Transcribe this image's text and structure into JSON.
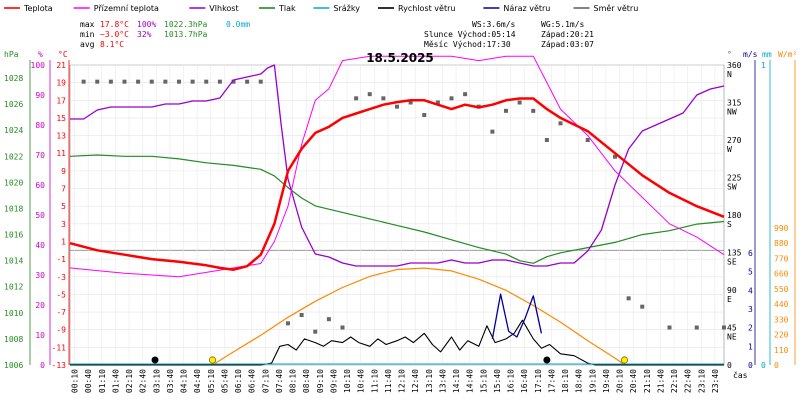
{
  "chart_data": {
    "type": "line",
    "title": "18.5.2025",
    "xlabel": "čas",
    "colors": {
      "teplota": "#ff0000",
      "pocitova": "#ff00ff",
      "vlhkost": "#9900cc",
      "tlak": "#228b22",
      "srazky": "#00aacc",
      "rychlost": "#000000",
      "naraz": "#000099",
      "smer": "#666666",
      "slunce": "#ff8800",
      "axis_c": "#ff0000",
      "axis_pct": "#cc00cc",
      "axis_hpa": "#228b22",
      "axis_mm": "#00aacc",
      "axis_wm": "#ff8800"
    },
    "legend": [
      {
        "key": "teplota",
        "label": "Teplota"
      },
      {
        "key": "pocitova",
        "label": "Přízemní teplota"
      },
      {
        "key": "vlhkost",
        "label": "Vlhkost"
      },
      {
        "key": "tlak",
        "label": "Tlak"
      },
      {
        "key": "srazky",
        "label": "Srážky"
      },
      {
        "key": "rychlost",
        "label": "Rychlost větru"
      },
      {
        "key": "naraz",
        "label": "Náraz větru"
      },
      {
        "key": "smer",
        "label": "Směr větru"
      }
    ],
    "stats": {
      "max_label": "max",
      "max_t": "17.8°C",
      "max_h": "100%",
      "max_p": "1022.3hPa",
      "max_r": "0.0mm",
      "min_label": "min",
      "min_t": "−3.0°C",
      "min_h": "32%",
      "min_p": "1013.7hPa",
      "avg_label": "avg",
      "avg_t": "8.1°C"
    },
    "info": {
      "ws": "WS:3.6m/s",
      "wg": "WG:5.1m/s",
      "slunce": "Slunce Východ:05:14",
      "slunce_z": "Západ:20:21",
      "mesic": "Měsíc  Východ:17:30",
      "mesic_z": "Západ:03:07"
    },
    "axes": {
      "hpa_unit": "hPa",
      "pct_unit": "%",
      "c_unit": "°C",
      "deg_unit": "°",
      "ms_unit": "m/s",
      "mm_unit": "mm",
      "wm_unit": "W/m²",
      "hpa_ticks": [
        "1028",
        "1026",
        "1024",
        "1022",
        "1020",
        "1018",
        "1016",
        "1014",
        "1012",
        "1010",
        "1008",
        "1006"
      ],
      "pct_ticks": [
        "100",
        "90",
        "80",
        "70",
        "60",
        "50",
        "40",
        "30",
        "20",
        "10",
        "0"
      ],
      "c_ticks": [
        "21",
        "19",
        "17",
        "15",
        "13",
        "11",
        "9",
        "7",
        "5",
        "3",
        "1",
        "-1",
        "-3",
        "-5",
        "-7",
        "-9",
        "-11",
        "-13"
      ],
      "dir_ticks": [
        {
          "deg": "360",
          "lbl": "N"
        },
        {
          "deg": "315",
          "lbl": "NW"
        },
        {
          "deg": "270",
          "lbl": "W"
        },
        {
          "deg": "225",
          "lbl": "SW"
        },
        {
          "deg": "180",
          "lbl": "S"
        },
        {
          "deg": "135",
          "lbl": "SE"
        },
        {
          "deg": "90",
          "lbl": "E"
        },
        {
          "deg": "45",
          "lbl": "NE"
        },
        {
          "deg": "0",
          "lbl": ""
        }
      ],
      "ms_ticks": [
        "6",
        "5",
        "4",
        "3",
        "2",
        "1",
        "0"
      ],
      "mm_ticks": [
        "1",
        "0"
      ],
      "wm_ticks": [
        "990",
        "880",
        "770",
        "660",
        "550",
        "440",
        "330",
        "220",
        "110",
        "0"
      ],
      "x_ticks": [
        "00:10",
        "00:40",
        "01:10",
        "01:40",
        "02:10",
        "02:40",
        "03:10",
        "03:40",
        "04:10",
        "04:40",
        "05:10",
        "05:40",
        "06:10",
        "06:40",
        "07:10",
        "07:40",
        "08:10",
        "08:40",
        "09:10",
        "09:40",
        "10:10",
        "10:40",
        "11:10",
        "11:40",
        "12:10",
        "12:40",
        "13:10",
        "13:40",
        "14:10",
        "14:40",
        "15:10",
        "15:40",
        "16:10",
        "16:40",
        "17:10",
        "17:40",
        "18:10",
        "18:40",
        "19:10",
        "19:40",
        "20:10",
        "20:40",
        "21:10",
        "21:40",
        "22:10",
        "22:40",
        "23:10",
        "23:40"
      ]
    },
    "series": {
      "teplota": {
        "x": [
          0,
          1,
          2,
          3,
          4,
          5,
          5.5,
          6,
          6.5,
          7,
          7.5,
          8,
          8.5,
          9,
          9.5,
          10,
          10.5,
          11,
          11.5,
          12,
          12.5,
          13,
          13.5,
          14,
          14.5,
          15,
          15.5,
          16,
          16.5,
          17,
          17.5,
          18,
          19,
          20,
          21,
          22,
          23,
          24
        ],
        "y": [
          0.8,
          0,
          -0.5,
          -1,
          -1.3,
          -1.7,
          -2,
          -2.2,
          -1.8,
          -0.5,
          3,
          9,
          11.5,
          13.3,
          14,
          15,
          15.5,
          16,
          16.5,
          16.8,
          17,
          17,
          16.5,
          16,
          16.5,
          16.2,
          16.5,
          17,
          17.2,
          17.2,
          16,
          15,
          13.5,
          11,
          8.5,
          6.5,
          5,
          3.8
        ]
      },
      "pocitova": {
        "x": [
          0,
          1,
          2,
          3,
          4,
          5,
          6,
          7,
          7.5,
          8,
          8.5,
          9,
          9.5,
          10,
          11,
          12,
          13,
          14,
          15,
          16,
          17,
          17.5,
          18,
          19,
          20,
          21,
          22,
          23,
          24
        ],
        "y": [
          -2,
          -2.3,
          -2.6,
          -2.8,
          -3,
          -2.5,
          -2,
          -1.5,
          1,
          5,
          12,
          17,
          18.3,
          21.5,
          22,
          22,
          22,
          22,
          21.5,
          22,
          22,
          19,
          16,
          13,
          9,
          6,
          3,
          1.5,
          -0.5
        ]
      },
      "vlhkost": {
        "x": [
          0,
          0.5,
          1,
          1.5,
          2,
          2.5,
          3,
          3.5,
          4,
          4.5,
          5,
          5.5,
          6,
          6.5,
          7,
          7.25,
          7.5,
          7.75,
          8,
          8.5,
          9,
          9.5,
          10,
          10.5,
          11,
          11.5,
          12,
          12.5,
          13,
          13.5,
          14,
          14.5,
          15,
          15.5,
          16,
          16.5,
          17,
          17.5,
          18,
          18.5,
          19,
          19.5,
          20,
          20.5,
          21,
          21.5,
          22,
          22.5,
          23,
          23.5,
          24
        ],
        "y": [
          82,
          82,
          85,
          86,
          86,
          86,
          86,
          87,
          87,
          88,
          88,
          89,
          95,
          96,
          97,
          99,
          100,
          80,
          62,
          46,
          37,
          36,
          34,
          33,
          33,
          33,
          33,
          34,
          34,
          34,
          35,
          34,
          34,
          35,
          35,
          34,
          33,
          33,
          34,
          34,
          38,
          45,
          60,
          72,
          78,
          80,
          82,
          84,
          90,
          92,
          93
        ]
      },
      "tlak": {
        "x": [
          0,
          1,
          2,
          3,
          4,
          5,
          6,
          7,
          7.5,
          8,
          8.5,
          9,
          10,
          11,
          12,
          13,
          14,
          15,
          16,
          16.5,
          17,
          17.5,
          18,
          19,
          20,
          21,
          22,
          23,
          24
        ],
        "y": [
          1022,
          1022.1,
          1022,
          1022,
          1021.8,
          1021.5,
          1021.3,
          1021,
          1020.5,
          1019.6,
          1018.8,
          1018.2,
          1017.7,
          1017.2,
          1016.7,
          1016.2,
          1015.6,
          1015,
          1014.5,
          1014,
          1013.8,
          1014.3,
          1014.6,
          1015,
          1015.4,
          1016,
          1016.3,
          1016.8,
          1017
        ]
      },
      "rychlost": {
        "x": [
          0,
          7.0,
          7.4,
          7.7,
          8.0,
          8.3,
          8.6,
          9.0,
          9.3,
          9.6,
          10.0,
          10.3,
          10.6,
          11.0,
          11.3,
          11.6,
          12.0,
          12.3,
          12.6,
          13.0,
          13.3,
          13.6,
          14.0,
          14.3,
          14.6,
          15.0,
          15.3,
          15.6,
          16.0,
          16.3,
          16.6,
          17.0,
          17.3,
          17.6,
          18.0,
          18.5,
          19.0,
          19.3,
          24
        ],
        "y": [
          0,
          0,
          0.1,
          1.0,
          1.1,
          0.8,
          1.4,
          1.2,
          1.0,
          1.3,
          1.2,
          1.5,
          1.2,
          1.0,
          1.4,
          1.1,
          1.3,
          1.5,
          1.2,
          1.7,
          1.1,
          0.7,
          1.5,
          0.8,
          1.3,
          1.0,
          2.1,
          1.2,
          1.4,
          1.7,
          2.4,
          1.4,
          0.9,
          1.1,
          0.6,
          0.5,
          0.1,
          0,
          0
        ]
      },
      "naraz": {
        "x": [
          15.5,
          15.8,
          16.1,
          16.4,
          16.7,
          17.0,
          17.3
        ],
        "y": [
          1.4,
          3.8,
          1.8,
          1.5,
          2.5,
          3.7,
          1.7
        ]
      },
      "smer": {
        "x": [
          0.5,
          1,
          1.5,
          2,
          2.5,
          3,
          3.5,
          4,
          4.5,
          5,
          5.5,
          6,
          6.5,
          7,
          8,
          8.5,
          9,
          9.5,
          10,
          10.5,
          11,
          11.5,
          12,
          12.5,
          13,
          13.5,
          14,
          14.5,
          15,
          15.5,
          16,
          16.5,
          17,
          17.5,
          18,
          19,
          20,
          20.5,
          21,
          22,
          23,
          24
        ],
        "y": [
          340,
          340,
          340,
          340,
          340,
          340,
          340,
          340,
          340,
          340,
          340,
          340,
          340,
          340,
          50,
          60,
          40,
          55,
          45,
          320,
          325,
          320,
          310,
          315,
          300,
          315,
          320,
          325,
          310,
          280,
          305,
          315,
          305,
          270,
          290,
          270,
          250,
          80,
          70,
          45,
          45,
          45
        ]
      },
      "slunce": {
        "x": [
          5.23,
          6,
          7,
          8,
          9,
          10,
          11,
          12,
          13,
          14,
          15,
          16,
          17,
          18,
          19,
          20,
          20.35
        ],
        "y": [
          0,
          95,
          215,
          345,
          460,
          560,
          640,
          690,
          700,
          680,
          620,
          540,
          430,
          310,
          175,
          50,
          0
        ]
      }
    },
    "markers": [
      {
        "type": "moon-set",
        "time": 3.12
      },
      {
        "type": "sun-rise",
        "time": 5.23
      },
      {
        "type": "moon-rise",
        "time": 17.5
      },
      {
        "type": "sun-set",
        "time": 20.35
      }
    ]
  }
}
